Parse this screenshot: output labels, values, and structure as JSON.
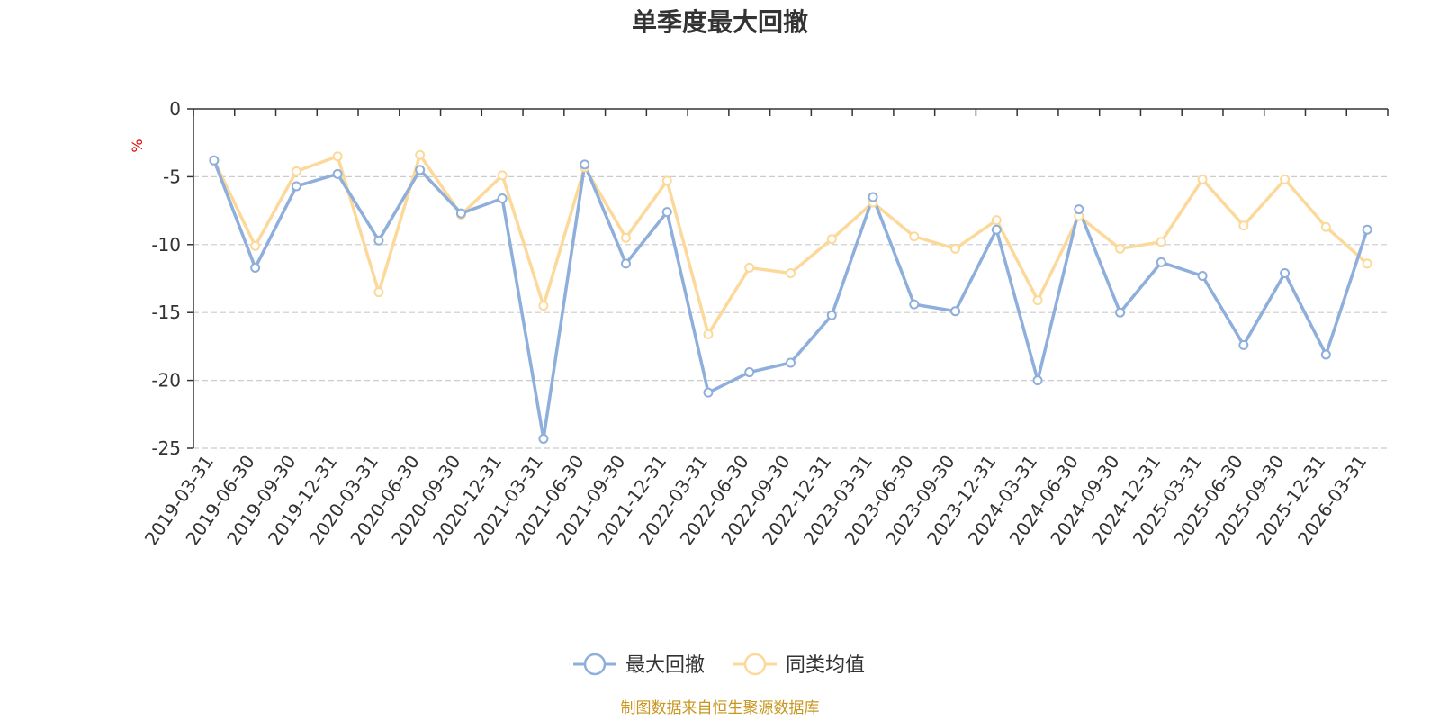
{
  "chart_data": {
    "type": "line",
    "title": "单季度最大回撤",
    "ylabel": "%",
    "ylim": [
      -25,
      0
    ],
    "yticks": [
      0,
      -5,
      -10,
      -15,
      -20,
      -25
    ],
    "grid": "horizontal-dashed",
    "legend_position": "bottom-center",
    "categories": [
      "2019-03-31",
      "2019-06-30",
      "2019-09-30",
      "2019-12-31",
      "2020-03-31",
      "2020-06-30",
      "2020-09-30",
      "2020-12-31",
      "2021-03-31",
      "2021-06-30",
      "2021-09-30",
      "2021-12-31",
      "2022-03-31",
      "2022-06-30",
      "2022-09-30",
      "2022-12-31",
      "2023-03-31",
      "2023-06-30",
      "2023-09-30",
      "2023-12-31",
      "2024-03-31",
      "2024-06-30",
      "2024-09-30",
      "2024-12-31",
      "2025-03-31",
      "2025-06-30",
      "2025-09-30",
      "2025-12-31",
      "2026-03-31"
    ],
    "series": [
      {
        "name": "最大回撤",
        "color": "#8eaedb",
        "values": [
          -3.8,
          -11.7,
          -5.7,
          -4.8,
          -9.7,
          -4.5,
          -7.7,
          -6.6,
          -24.3,
          -4.1,
          -11.4,
          -7.6,
          -20.9,
          -19.4,
          -18.7,
          -15.2,
          -6.5,
          -14.4,
          -14.9,
          -8.9,
          -20.0,
          -7.4,
          -15.0,
          -11.3,
          -12.3,
          -17.4,
          -12.1,
          -18.1,
          -8.9
        ]
      },
      {
        "name": "同类均值",
        "color": "#fcd99a",
        "values": [
          -3.8,
          -10.1,
          -4.6,
          -3.5,
          -13.5,
          -3.4,
          -7.8,
          -4.9,
          -14.5,
          -4.3,
          -9.5,
          -5.3,
          -16.6,
          -11.7,
          -12.1,
          -9.6,
          -6.9,
          -9.4,
          -10.3,
          -8.2,
          -14.1,
          -7.9,
          -10.3,
          -9.8,
          -5.2,
          -8.6,
          -5.2,
          -8.7,
          -11.4
        ]
      }
    ]
  },
  "source_note": "制图数据来自恒生聚源数据库"
}
